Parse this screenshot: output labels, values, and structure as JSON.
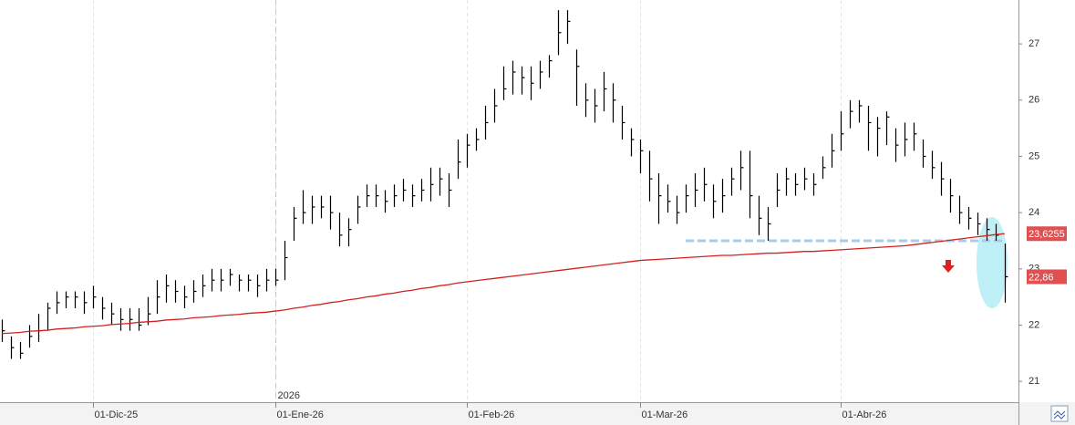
{
  "chart_data": {
    "type": "ohlc",
    "ylim": [
      20.63,
      27.78
    ],
    "yticks": [
      21,
      22,
      23,
      24,
      25,
      26,
      27
    ],
    "year_label": "2026",
    "year_label_category": 30,
    "categories": [
      null,
      null,
      null,
      null,
      null,
      null,
      null,
      null,
      null,
      null,
      "01-Dic-25",
      null,
      null,
      null,
      null,
      null,
      null,
      null,
      null,
      null,
      null,
      null,
      null,
      null,
      null,
      null,
      null,
      null,
      null,
      null,
      "01-Ene-26",
      null,
      null,
      null,
      null,
      null,
      null,
      null,
      null,
      null,
      null,
      null,
      null,
      null,
      null,
      null,
      null,
      null,
      null,
      null,
      null,
      "01-Feb-26",
      null,
      null,
      null,
      null,
      null,
      null,
      null,
      null,
      null,
      null,
      null,
      null,
      null,
      null,
      null,
      null,
      null,
      null,
      "01-Mar-26",
      null,
      null,
      null,
      null,
      null,
      null,
      null,
      null,
      null,
      null,
      null,
      null,
      null,
      null,
      null,
      null,
      null,
      null,
      null,
      null,
      null,
      "01-Abr-26",
      null,
      null,
      null,
      null,
      null,
      null,
      null,
      null,
      null,
      null,
      null,
      null,
      null,
      null,
      null,
      null,
      null,
      null
    ],
    "bars": {
      "color": "#000000",
      "high": [
        22.1,
        21.8,
        21.7,
        22.0,
        22.2,
        22.4,
        22.6,
        22.6,
        22.6,
        22.6,
        22.7,
        22.5,
        22.4,
        22.3,
        22.3,
        22.3,
        22.5,
        22.8,
        22.9,
        22.8,
        22.7,
        22.8,
        22.9,
        23.0,
        23.0,
        23.0,
        22.9,
        22.9,
        22.9,
        23.0,
        23.0,
        23.5,
        24.1,
        24.4,
        24.3,
        24.3,
        24.3,
        24.0,
        23.9,
        24.3,
        24.5,
        24.5,
        24.4,
        24.5,
        24.6,
        24.5,
        24.6,
        24.8,
        24.8,
        24.7,
        25.3,
        25.4,
        25.5,
        25.9,
        26.2,
        26.6,
        26.7,
        26.6,
        26.6,
        26.7,
        26.8,
        27.6,
        27.6,
        26.9,
        26.3,
        26.2,
        26.5,
        26.3,
        25.9,
        25.5,
        25.3,
        25.1,
        24.7,
        24.5,
        24.3,
        24.5,
        24.7,
        24.8,
        24.5,
        24.6,
        24.8,
        25.1,
        25.1,
        24.3,
        24.1,
        24.7,
        24.8,
        24.7,
        24.8,
        24.7,
        25.0,
        25.4,
        25.8,
        26.0,
        26.0,
        25.9,
        25.7,
        25.8,
        25.5,
        25.6,
        25.6,
        25.3,
        25.1,
        24.9,
        24.6,
        24.3,
        24.1,
        24.0,
        23.9,
        23.8,
        23.45
      ],
      "low": [
        21.7,
        21.4,
        21.4,
        21.6,
        21.7,
        21.9,
        22.2,
        22.3,
        22.3,
        22.2,
        22.3,
        22.1,
        22.0,
        21.9,
        21.9,
        21.9,
        22.0,
        22.2,
        22.4,
        22.4,
        22.3,
        22.4,
        22.5,
        22.6,
        22.6,
        22.7,
        22.6,
        22.6,
        22.5,
        22.6,
        22.7,
        22.8,
        23.5,
        23.8,
        23.8,
        23.9,
        23.7,
        23.4,
        23.4,
        23.8,
        24.1,
        24.1,
        24.0,
        24.1,
        24.2,
        24.1,
        24.2,
        24.2,
        24.3,
        24.1,
        24.6,
        24.8,
        25.1,
        25.3,
        25.6,
        26.0,
        26.1,
        26.1,
        26.0,
        26.2,
        26.4,
        26.8,
        27.0,
        25.9,
        25.7,
        25.6,
        25.8,
        25.6,
        25.3,
        25.0,
        24.7,
        24.2,
        23.8,
        24.0,
        23.8,
        24.0,
        24.1,
        24.2,
        23.9,
        24.0,
        24.3,
        24.4,
        23.9,
        23.6,
        23.5,
        24.1,
        24.3,
        24.3,
        24.4,
        24.3,
        24.6,
        24.8,
        25.1,
        25.5,
        25.6,
        25.1,
        25.0,
        25.2,
        24.9,
        25.0,
        25.1,
        24.8,
        24.6,
        24.3,
        24.0,
        23.8,
        23.7,
        23.6,
        23.5,
        23.5,
        22.4
      ],
      "close": [
        21.9,
        21.6,
        21.5,
        21.8,
        21.9,
        22.3,
        22.4,
        22.5,
        22.5,
        22.4,
        22.5,
        22.3,
        22.2,
        22.1,
        22.1,
        22.0,
        22.2,
        22.5,
        22.7,
        22.6,
        22.5,
        22.6,
        22.7,
        22.8,
        22.8,
        22.9,
        22.8,
        22.8,
        22.7,
        22.8,
        22.8,
        23.2,
        23.9,
        24.0,
        24.1,
        24.1,
        24.0,
        23.6,
        23.7,
        24.1,
        24.3,
        24.3,
        24.2,
        24.3,
        24.4,
        24.3,
        24.4,
        24.5,
        24.6,
        24.4,
        24.9,
        25.2,
        25.3,
        25.6,
        25.9,
        26.2,
        26.5,
        26.4,
        26.3,
        26.5,
        26.7,
        27.2,
        27.4,
        26.6,
        26.0,
        25.9,
        26.2,
        26.0,
        25.6,
        25.3,
        25.1,
        24.6,
        24.3,
        24.2,
        24.0,
        24.3,
        24.4,
        24.5,
        24.2,
        24.3,
        24.6,
        24.8,
        24.3,
        23.9,
        23.8,
        24.4,
        24.6,
        24.5,
        24.6,
        24.5,
        24.8,
        25.1,
        25.4,
        25.8,
        25.9,
        25.6,
        25.5,
        25.7,
        25.2,
        25.3,
        25.4,
        25.0,
        24.8,
        24.6,
        24.3,
        24.0,
        23.9,
        23.8,
        23.7,
        23.6,
        22.86
      ]
    },
    "moving_average": {
      "color": "#d42020",
      "values": [
        21.85,
        21.86,
        21.87,
        21.89,
        21.9,
        21.91,
        21.93,
        21.94,
        21.95,
        21.97,
        21.98,
        21.99,
        22.01,
        22.02,
        22.03,
        22.05,
        22.06,
        22.07,
        22.09,
        22.1,
        22.11,
        22.13,
        22.14,
        22.15,
        22.17,
        22.18,
        22.19,
        22.21,
        22.22,
        22.23,
        22.25,
        22.27,
        22.3,
        22.32,
        22.35,
        22.37,
        22.4,
        22.42,
        22.45,
        22.47,
        22.5,
        22.52,
        22.55,
        22.57,
        22.6,
        22.62,
        22.65,
        22.67,
        22.7,
        22.72,
        22.75,
        22.77,
        22.79,
        22.81,
        22.83,
        22.85,
        22.87,
        22.89,
        22.91,
        22.93,
        22.95,
        22.97,
        22.99,
        23.01,
        23.03,
        23.05,
        23.07,
        23.09,
        23.11,
        23.13,
        23.15,
        23.16,
        23.17,
        23.18,
        23.19,
        23.2,
        23.21,
        23.22,
        23.23,
        23.24,
        23.24,
        23.25,
        23.26,
        23.27,
        23.28,
        23.28,
        23.29,
        23.3,
        23.31,
        23.31,
        23.32,
        23.33,
        23.34,
        23.35,
        23.36,
        23.37,
        23.38,
        23.39,
        23.4,
        23.41,
        23.43,
        23.45,
        23.47,
        23.49,
        23.51,
        23.53,
        23.55,
        23.57,
        23.59,
        23.61,
        23.6255
      ]
    },
    "support": {
      "value": 23.5,
      "from_category": 75,
      "color": "#a8cde8"
    },
    "price_tags": [
      {
        "value": 23.6255,
        "label": "23,6255"
      },
      {
        "value": 22.86,
        "label": "22,86"
      }
    ],
    "tag_color": "#e05050"
  }
}
